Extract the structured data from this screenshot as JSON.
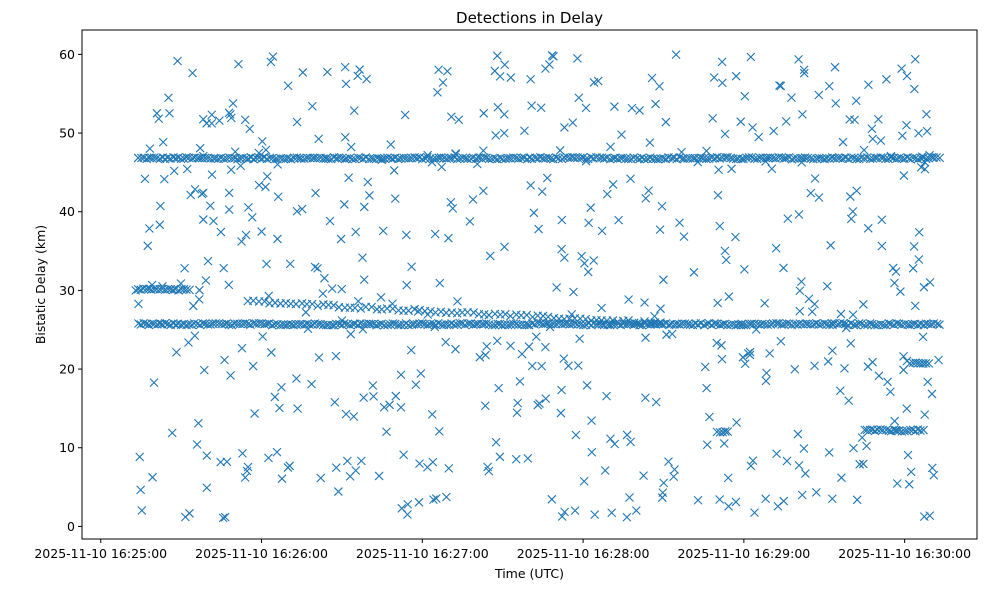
{
  "chart_data": {
    "type": "scatter",
    "title": "Detections in Delay",
    "xlabel": "Time (UTC)",
    "ylabel": "Bistatic Delay (km)",
    "marker": "x",
    "color": "#1f77b4",
    "grid": false,
    "x_axis": {
      "type": "time",
      "start": "2025-11-10 16:24:53",
      "end": "2025-11-10 16:30:27",
      "ticks": [
        "2025-11-10 16:25:00",
        "2025-11-10 16:26:00",
        "2025-11-10 16:27:00",
        "2025-11-10 16:28:00",
        "2025-11-10 16:29:00",
        "2025-11-10 16:30:00"
      ]
    },
    "y_axis": {
      "ylim": [
        -1.6,
        63.1
      ],
      "ticks": [
        0,
        10,
        20,
        30,
        40,
        50,
        60
      ]
    },
    "series": [
      {
        "groups": [
          {
            "description": "horizontal track",
            "y": 46.8,
            "x_start": "2025-11-10 16:25:14",
            "x_end": "2025-11-10 16:30:13",
            "step_seconds": 1
          },
          {
            "description": "horizontal track",
            "y": 25.7,
            "x_start": "2025-11-10 16:25:14",
            "x_end": "2025-11-10 16:30:13",
            "step_seconds": 1
          },
          {
            "description": "descending track",
            "y_from": 28.6,
            "y_to": 25.8,
            "x_start": "2025-11-10 16:25:55",
            "x_end": "2025-11-10 16:28:30",
            "step_seconds": 2
          },
          {
            "description": "short segment",
            "y": 30.1,
            "x_start": "2025-11-10 16:25:13",
            "x_end": "2025-11-10 16:25:33",
            "step_seconds": 1
          },
          {
            "description": "short segment",
            "y": 12.2,
            "x_start": "2025-11-10 16:29:45",
            "x_end": "2025-11-10 16:30:07",
            "step_seconds": 1
          },
          {
            "description": "short segment",
            "y": 20.7,
            "x_start": "2025-11-10 16:30:02",
            "x_end": "2025-11-10 16:30:09",
            "step_seconds": 1
          },
          {
            "description": "short segment",
            "y": 12.0,
            "x_start": "2025-11-10 16:28:50",
            "x_end": "2025-11-10 16:28:54",
            "step_seconds": 1
          }
        ],
        "scattered": {
          "count": 560,
          "y_range": [
            1,
            60
          ],
          "x_start": "2025-11-10 16:25:14",
          "x_end": "2025-11-10 16:30:14"
        }
      }
    ]
  }
}
